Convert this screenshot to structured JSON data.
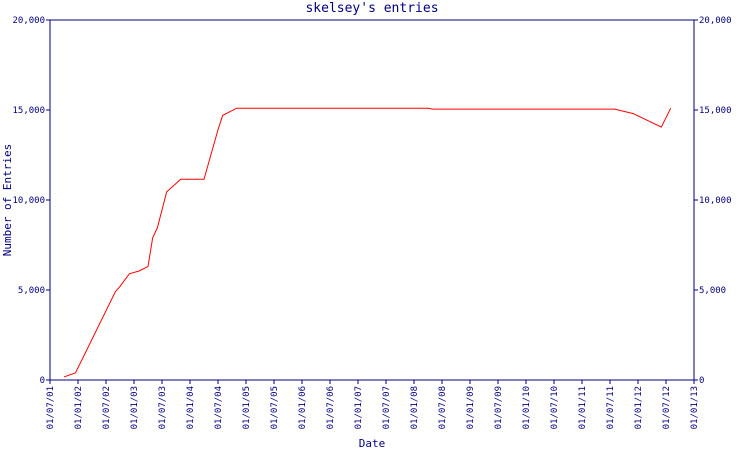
{
  "chart_data": {
    "type": "line",
    "title": "skelsey's entries",
    "x_label": "Date",
    "y_label": "Number of Entries",
    "x": [
      "2001-10-01",
      "2001-12-15",
      "2002-09-01",
      "2002-10-01",
      "2002-12-01",
      "2003-02-01",
      "2003-04-01",
      "2003-05-01",
      "2003-06-01",
      "2003-08-01",
      "2003-11-01",
      "2004-04-01",
      "2004-07-01",
      "2004-08-01",
      "2004-11-01",
      "2008-04-01",
      "2008-05-01",
      "2011-08-01",
      "2011-12-01",
      "2012-06-01",
      "2012-08-01"
    ],
    "series": [
      {
        "name": "entries",
        "color": "#ff0000",
        "values": [
          170,
          400,
          4900,
          5200,
          5900,
          6050,
          6300,
          7900,
          8450,
          10450,
          11150,
          11150,
          13900,
          14700,
          15100,
          15100,
          15050,
          15050,
          14800,
          14050,
          15100
        ]
      }
    ],
    "xlim": [
      "2001-07-01",
      "2013-01-01"
    ],
    "xticks": [
      {
        "value": "2001-07-01",
        "label": "01/07/01"
      },
      {
        "value": "2002-01-01",
        "label": "01/01/02"
      },
      {
        "value": "2002-07-01",
        "label": "01/07/02"
      },
      {
        "value": "2003-01-01",
        "label": "01/01/03"
      },
      {
        "value": "2003-07-01",
        "label": "01/07/03"
      },
      {
        "value": "2004-01-01",
        "label": "01/01/04"
      },
      {
        "value": "2004-07-01",
        "label": "01/07/04"
      },
      {
        "value": "2005-01-01",
        "label": "01/01/05"
      },
      {
        "value": "2005-07-01",
        "label": "01/07/05"
      },
      {
        "value": "2006-01-01",
        "label": "01/01/06"
      },
      {
        "value": "2006-07-01",
        "label": "01/07/06"
      },
      {
        "value": "2007-01-01",
        "label": "01/01/07"
      },
      {
        "value": "2007-07-01",
        "label": "01/07/07"
      },
      {
        "value": "2008-01-01",
        "label": "01/01/08"
      },
      {
        "value": "2008-07-01",
        "label": "01/07/08"
      },
      {
        "value": "2009-01-01",
        "label": "01/01/09"
      },
      {
        "value": "2009-07-01",
        "label": "01/07/09"
      },
      {
        "value": "2010-01-01",
        "label": "01/01/10"
      },
      {
        "value": "2010-07-01",
        "label": "01/07/10"
      },
      {
        "value": "2011-01-01",
        "label": "01/01/11"
      },
      {
        "value": "2011-07-01",
        "label": "01/07/11"
      },
      {
        "value": "2012-01-01",
        "label": "01/01/12"
      },
      {
        "value": "2012-07-01",
        "label": "01/07/12"
      },
      {
        "value": "2013-01-01",
        "label": "01/01/13"
      }
    ],
    "ylim": [
      0,
      20000
    ],
    "yticks": [
      0,
      {
        "value": 5000,
        "label": "5,000"
      },
      {
        "value": 10000,
        "label": "10,000"
      },
      {
        "value": 15000,
        "label": "15,000"
      },
      {
        "value": 20000,
        "label": "20,000"
      }
    ],
    "right_axis": true,
    "axis_color": "#000080"
  }
}
